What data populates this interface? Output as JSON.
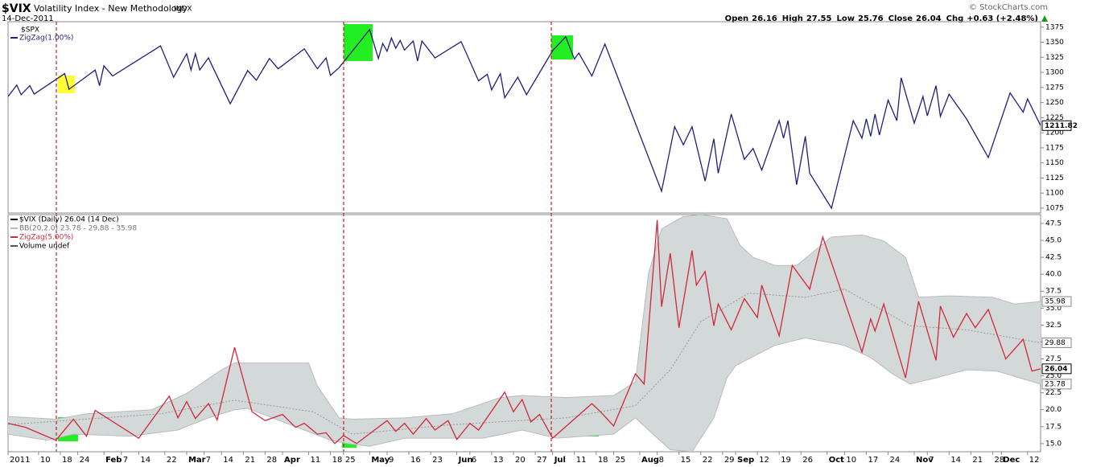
{
  "header": {
    "symbol": "$VIX",
    "name": "Volatility Index - New Methodology",
    "exchange": "INDX",
    "date": "14-Dec-2011",
    "credit": "© StockCharts.com",
    "quote": [
      {
        "label": "Open",
        "value": "26.16"
      },
      {
        "label": "High",
        "value": "27.55"
      },
      {
        "label": "Low",
        "value": "25.76"
      },
      {
        "label": "Close",
        "value": "26.04"
      },
      {
        "label": "Chg",
        "value": "+0.63 (+2.48%)"
      }
    ]
  },
  "chart_data": [
    {
      "type": "line",
      "panel_label": "$SPX",
      "xlim": [
        0,
        237
      ],
      "ylim": [
        1067,
        1384
      ],
      "yticks": [
        1075,
        1100,
        1125,
        1150,
        1175,
        1200,
        1225,
        1250,
        1275,
        1300,
        1325,
        1350,
        1375
      ],
      "series": [
        {
          "name": "ZigZag(1.00%)",
          "color": "#1f1f7a",
          "x": [
            0,
            2,
            3,
            5,
            6,
            13,
            14,
            20,
            21,
            22,
            24,
            35,
            38,
            41,
            42,
            43,
            44,
            46,
            51,
            55,
            57,
            60,
            62,
            68,
            71,
            73,
            74,
            76,
            83,
            85,
            86,
            87,
            88,
            89,
            90,
            91,
            93,
            94,
            95,
            98,
            104,
            108,
            110,
            111,
            113,
            114,
            117,
            119,
            125,
            128,
            130,
            131,
            134,
            137,
            150,
            153,
            155,
            157,
            160,
            162,
            163,
            166,
            169,
            171,
            173,
            177,
            178,
            179,
            181,
            183,
            184,
            189,
            194,
            196,
            197,
            198,
            199,
            200,
            202,
            204,
            205,
            208,
            210,
            211,
            213,
            214,
            216,
            220,
            225,
            230,
            233,
            234,
            237
          ],
          "values": [
            1260,
            1279,
            1263,
            1278,
            1264,
            1298,
            1272,
            1304,
            1278,
            1311,
            1294,
            1344,
            1292,
            1331,
            1304,
            1331,
            1304,
            1324,
            1248,
            1303,
            1287,
            1323,
            1306,
            1339,
            1306,
            1324,
            1295,
            1308,
            1371,
            1323,
            1348,
            1335,
            1357,
            1340,
            1353,
            1337,
            1352,
            1319,
            1352,
            1324,
            1351,
            1286,
            1297,
            1271,
            1298,
            1258,
            1292,
            1263,
            1336,
            1359,
            1322,
            1332,
            1294,
            1347,
            1103,
            1210,
            1180,
            1210,
            1120,
            1190,
            1133,
            1231,
            1156,
            1174,
            1138,
            1220,
            1191,
            1220,
            1114,
            1194,
            1133,
            1075,
            1220,
            1191,
            1223,
            1194,
            1231,
            1196,
            1254,
            1220,
            1291,
            1216,
            1260,
            1228,
            1278,
            1227,
            1264,
            1223,
            1159,
            1266,
            1234,
            1256,
            1211.82
          ]
        }
      ]
    },
    {
      "type": "line",
      "legend": [
        "$VIX (Daily) 26.04 (14 Dec)",
        "BB(20,2.0) 23.78 - 29.88 - 35.98",
        "ZigZag(5.00%)",
        "Volume undef"
      ],
      "xlim": [
        0,
        237
      ],
      "ylim": [
        13.8,
        48.8
      ],
      "yticks": [
        {
          "value": 15,
          "label": "15.0"
        },
        17.5,
        {
          "value": 20,
          "label": "20.0"
        },
        22.5,
        {
          "value": 25,
          "label": "25.0"
        },
        27.5,
        {
          "value": 30,
          "label": "30.0"
        },
        32.5,
        {
          "value": 35,
          "label": "35.0"
        },
        37.5,
        {
          "value": 40,
          "label": "40.0"
        },
        42.5,
        {
          "value": 45,
          "label": "45.0"
        },
        47.5
      ],
      "xticks": [
        {
          "value": 0,
          "label": "2011"
        },
        {
          "value": 7,
          "label": "10"
        },
        {
          "value": 12,
          "label": "18"
        },
        {
          "value": 16,
          "label": "24"
        },
        {
          "value": 22,
          "label": "Feb"
        },
        {
          "value": 26,
          "label": "7"
        },
        {
          "value": 30,
          "label": "14"
        },
        {
          "value": 36,
          "label": "22"
        },
        {
          "value": 41,
          "label": "Mar"
        },
        {
          "value": 45,
          "label": "7"
        },
        {
          "value": 49,
          "label": "14"
        },
        {
          "value": 54,
          "label": "21"
        },
        {
          "value": 59,
          "label": "28"
        },
        {
          "value": 63,
          "label": "Apr"
        },
        {
          "value": 69,
          "label": "11"
        },
        {
          "value": 74,
          "label": "18"
        },
        {
          "value": 77,
          "label": "25"
        },
        {
          "value": 83,
          "label": "May"
        },
        {
          "value": 87,
          "label": "9"
        },
        {
          "value": 92,
          "label": "16"
        },
        {
          "value": 97,
          "label": "23"
        },
        {
          "value": 103,
          "label": "Jun"
        },
        {
          "value": 106,
          "label": "6"
        },
        {
          "value": 111,
          "label": "13"
        },
        {
          "value": 116,
          "label": "20"
        },
        {
          "value": 121,
          "label": "27"
        },
        {
          "value": 125,
          "label": "Jul"
        },
        {
          "value": 130,
          "label": "11"
        },
        {
          "value": 135,
          "label": "18"
        },
        {
          "value": 139,
          "label": "25"
        },
        {
          "value": 145,
          "label": "Aug"
        },
        {
          "value": 149,
          "label": "8"
        },
        {
          "value": 154,
          "label": "15"
        },
        {
          "value": 159,
          "label": "22"
        },
        {
          "value": 164,
          "label": "29"
        },
        {
          "value": 167,
          "label": "Sep"
        },
        {
          "value": 172,
          "label": "12"
        },
        {
          "value": 177,
          "label": "19"
        },
        {
          "value": 182,
          "label": "26"
        },
        {
          "value": 188,
          "label": "Oct"
        },
        {
          "value": 192,
          "label": "10"
        },
        {
          "value": 197,
          "label": "17"
        },
        {
          "value": 202,
          "label": "24"
        },
        {
          "value": 208,
          "label": "Nov"
        },
        {
          "value": 211,
          "label": "7"
        },
        {
          "value": 216,
          "label": "14"
        },
        {
          "value": 221,
          "label": "21"
        },
        {
          "value": 226,
          "label": "28"
        },
        {
          "value": 228,
          "label": "Dec"
        },
        {
          "value": 234,
          "label": "12"
        }
      ],
      "bands": {
        "color": "#d3d8d8",
        "line_color": "#b8bcbc",
        "mid_color": "#999999",
        "upper": {
          "x": [
            0,
            11,
            18,
            33,
            41,
            49,
            52,
            55,
            69,
            71,
            76,
            79,
            91,
            102,
            113,
            118,
            128,
            139,
            144,
            147,
            150,
            155,
            159,
            165,
            168,
            171,
            176,
            181,
            189,
            196,
            201,
            206,
            209,
            216,
            226,
            231,
            237
          ],
          "values": [
            19.0,
            18.6,
            19.4,
            20.0,
            22.4,
            25.9,
            26.9,
            26.9,
            26.9,
            23.5,
            18.8,
            18.6,
            18.8,
            19.4,
            21.8,
            22.1,
            21.8,
            22.1,
            24.1,
            40.1,
            46.7,
            48.5,
            48.8,
            48.2,
            44.3,
            42.5,
            41.3,
            41.3,
            45.5,
            45.8,
            44.9,
            42.5,
            36.6,
            36.8,
            36.6,
            35.6,
            35.98
          ]
        },
        "middle": {
          "x": [
            0,
            35,
            52,
            70,
            79,
            102,
            128,
            144,
            152,
            159,
            170,
            183,
            192,
            207,
            220,
            237
          ],
          "values": [
            17.8,
            19.4,
            21.4,
            19.7,
            16.4,
            17.8,
            18.8,
            20.6,
            25.9,
            33.0,
            37.2,
            36.6,
            37.8,
            32.4,
            31.8,
            29.88
          ]
        },
        "lower": {
          "x": [
            0,
            9,
            15,
            28,
            39,
            46,
            52,
            55,
            68,
            74,
            78,
            83,
            91,
            109,
            118,
            126,
            139,
            144,
            146,
            152,
            157,
            162,
            165,
            167,
            176,
            183,
            192,
            198,
            203,
            207,
            213,
            220,
            227,
            237
          ],
          "values": [
            16.4,
            15.5,
            16.4,
            16.1,
            17.0,
            18.8,
            20.0,
            20.2,
            17.0,
            15.5,
            15.0,
            14.6,
            15.8,
            15.8,
            17.0,
            15.8,
            16.4,
            18.8,
            17.6,
            14.1,
            13.8,
            18.8,
            24.7,
            26.5,
            29.5,
            30.6,
            29.5,
            27.7,
            25.3,
            23.8,
            24.7,
            25.9,
            25.7,
            23.78
          ]
        }
      },
      "series": [
        {
          "name": "ZigZag(5.00%)",
          "color": "#d0283c",
          "x": [
            0,
            4,
            11,
            15,
            18,
            20,
            30,
            37,
            39,
            41,
            43,
            46,
            48,
            52,
            56,
            59,
            63,
            66,
            68,
            71,
            73,
            75,
            77,
            80,
            87,
            89,
            91,
            93,
            96,
            98,
            101,
            103,
            106,
            108,
            114,
            116,
            118,
            120,
            122,
            125,
            134,
            136,
            139,
            144,
            146,
            149,
            150,
            152,
            154,
            157,
            158,
            160,
            162,
            163,
            166,
            169,
            172,
            173,
            177,
            180,
            184,
            187,
            196,
            198,
            199,
            201,
            206,
            209,
            213,
            214,
            217,
            220,
            222,
            225,
            229,
            233,
            235,
            237
          ],
          "values": [
            18.0,
            17.4,
            15.5,
            18.6,
            16.1,
            19.9,
            15.8,
            22.0,
            18.8,
            21.2,
            18.7,
            20.9,
            18.5,
            29.2,
            19.7,
            18.4,
            19.3,
            17.4,
            18.0,
            16.4,
            16.6,
            15.0,
            16.2,
            15.0,
            18.4,
            16.8,
            18.0,
            16.4,
            18.7,
            17.0,
            18.4,
            15.6,
            18.0,
            17.0,
            22.6,
            19.7,
            21.5,
            18.2,
            19.3,
            15.8,
            20.9,
            19.7,
            17.6,
            25.3,
            23.8,
            48.0,
            35.2,
            43.1,
            32.1,
            43.5,
            38.4,
            40.4,
            32.4,
            35.6,
            31.8,
            36.4,
            33.6,
            38.4,
            30.9,
            41.3,
            37.8,
            45.5,
            28.5,
            33.4,
            31.6,
            35.6,
            24.7,
            36.0,
            27.3,
            35.3,
            30.7,
            34.2,
            32.1,
            34.8,
            27.5,
            30.4,
            25.7,
            26.04
          ]
        }
      ]
    }
  ]
}
